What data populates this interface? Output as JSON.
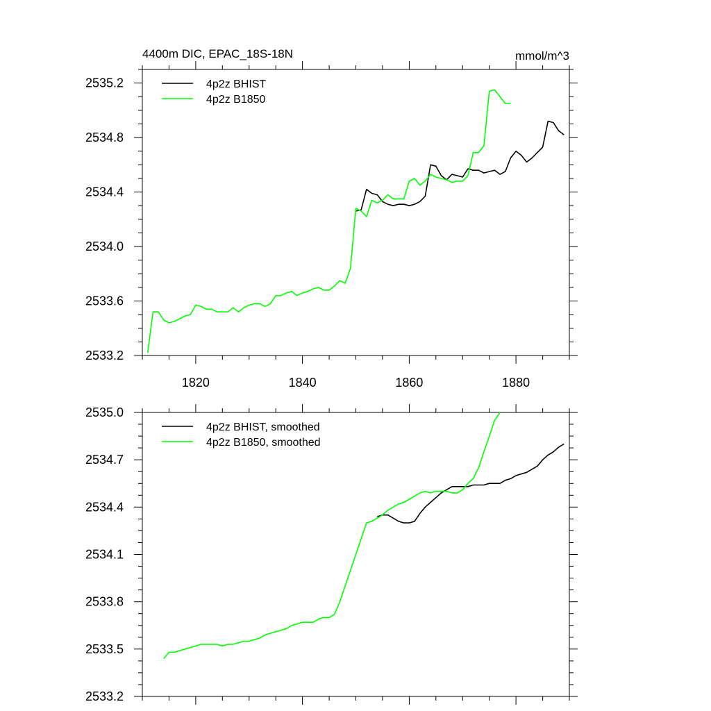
{
  "chart_data": [
    {
      "type": "line",
      "title": "4400m DIC, EPAC_18S-18N",
      "units": "mmol/m^3",
      "xlim": [
        1810,
        1890
      ],
      "ylim": [
        2533.2,
        2535.3
      ],
      "x_ticks": [
        1820,
        1840,
        1860,
        1880
      ],
      "x_tick_labels": [
        "1820",
        "1840",
        "1860",
        "1880"
      ],
      "y_ticks": [
        2533.2,
        2533.6,
        2534.0,
        2534.4,
        2534.8,
        2535.2
      ],
      "y_tick_labels": [
        "2533.2",
        "2533.6",
        "2534.0",
        "2534.4",
        "2534.8",
        "2535.2"
      ],
      "legend_position": "top-left",
      "series": [
        {
          "name": "4p2z BHIST",
          "color": "#000000",
          "x": [
            1850,
            1851,
            1852,
            1853,
            1854,
            1855,
            1856,
            1857,
            1858,
            1859,
            1860,
            1861,
            1862,
            1863,
            1864,
            1865,
            1866,
            1867,
            1868,
            1869,
            1870,
            1871,
            1872,
            1873,
            1874,
            1875,
            1876,
            1877,
            1878,
            1879,
            1880,
            1881,
            1882,
            1883,
            1884,
            1885,
            1886,
            1887,
            1888,
            1889
          ],
          "y": [
            2534.26,
            2534.27,
            2534.42,
            2534.39,
            2534.38,
            2534.33,
            2534.31,
            2534.3,
            2534.31,
            2534.31,
            2534.3,
            2534.31,
            2534.33,
            2534.37,
            2534.6,
            2534.59,
            2534.52,
            2534.49,
            2534.53,
            2534.52,
            2534.51,
            2534.57,
            2534.56,
            2534.56,
            2534.54,
            2534.55,
            2534.56,
            2534.53,
            2534.55,
            2534.65,
            2534.7,
            2534.67,
            2534.62,
            2534.65,
            2534.69,
            2534.73,
            2534.92,
            2534.91,
            2534.85,
            2534.82
          ]
        },
        {
          "name": "4p2z B1850",
          "color": "#00ff00",
          "x": [
            1811,
            1812,
            1813,
            1814,
            1815,
            1816,
            1817,
            1818,
            1819,
            1820,
            1821,
            1822,
            1823,
            1824,
            1825,
            1826,
            1827,
            1828,
            1829,
            1830,
            1831,
            1832,
            1833,
            1834,
            1835,
            1836,
            1837,
            1838,
            1839,
            1840,
            1841,
            1842,
            1843,
            1844,
            1845,
            1846,
            1847,
            1848,
            1849,
            1850,
            1851,
            1852,
            1853,
            1854,
            1855,
            1856,
            1857,
            1858,
            1859,
            1860,
            1861,
            1862,
            1863,
            1864,
            1865,
            1866,
            1867,
            1868,
            1869,
            1870,
            1871,
            1872,
            1873,
            1874,
            1875,
            1876,
            1877,
            1878,
            1879
          ],
          "y": [
            2533.22,
            2533.52,
            2533.52,
            2533.46,
            2533.44,
            2533.45,
            2533.47,
            2533.49,
            2533.5,
            2533.57,
            2533.56,
            2533.54,
            2533.54,
            2533.52,
            2533.52,
            2533.52,
            2533.55,
            2533.52,
            2533.55,
            2533.57,
            2533.58,
            2533.58,
            2533.56,
            2533.58,
            2533.64,
            2533.64,
            2533.66,
            2533.67,
            2533.64,
            2533.66,
            2533.67,
            2533.69,
            2533.7,
            2533.68,
            2533.68,
            2533.71,
            2533.75,
            2533.73,
            2533.84,
            2534.28,
            2534.26,
            2534.22,
            2534.34,
            2534.32,
            2534.34,
            2534.38,
            2534.35,
            2534.35,
            2534.35,
            2534.48,
            2534.5,
            2534.45,
            2534.48,
            2534.53,
            2534.51,
            2534.5,
            2534.49,
            2534.47,
            2534.48,
            2534.48,
            2534.52,
            2534.69,
            2534.69,
            2534.74,
            2535.14,
            2535.15,
            2535.1,
            2535.05,
            2535.05
          ]
        }
      ]
    },
    {
      "type": "line",
      "xlim": [
        1810,
        1890
      ],
      "ylim": [
        2533.2,
        2535.0
      ],
      "x_ticks": [
        1820,
        1840,
        1860,
        1880
      ],
      "y_ticks": [
        2533.2,
        2533.5,
        2533.8,
        2534.1,
        2534.4,
        2534.7,
        2535.0
      ],
      "y_tick_labels": [
        "2533.2",
        "2533.5",
        "2533.8",
        "2534.1",
        "2534.4",
        "2534.7",
        "2535.0"
      ],
      "legend_position": "top-left",
      "series": [
        {
          "name": "4p2z BHIST, smoothed",
          "color": "#000000",
          "x": [
            1854,
            1855,
            1856,
            1857,
            1858,
            1859,
            1860,
            1861,
            1862,
            1863,
            1864,
            1865,
            1866,
            1867,
            1868,
            1869,
            1870,
            1871,
            1872,
            1873,
            1874,
            1875,
            1876,
            1877,
            1878,
            1879,
            1880,
            1881,
            1882,
            1883,
            1884,
            1885,
            1886,
            1887,
            1888,
            1889
          ],
          "y": [
            2534.34,
            2534.35,
            2534.35,
            2534.33,
            2534.31,
            2534.3,
            2534.3,
            2534.31,
            2534.36,
            2534.4,
            2534.43,
            2534.46,
            2534.49,
            2534.51,
            2534.53,
            2534.53,
            2534.53,
            2534.53,
            2534.54,
            2534.54,
            2534.54,
            2534.55,
            2534.55,
            2534.55,
            2534.57,
            2534.58,
            2534.6,
            2534.61,
            2534.62,
            2534.64,
            2534.66,
            2534.7,
            2534.73,
            2534.75,
            2534.78,
            2534.8
          ]
        },
        {
          "name": "4p2z B1850, smoothed",
          "color": "#00ff00",
          "x": [
            1814,
            1815,
            1816,
            1817,
            1818,
            1819,
            1820,
            1821,
            1822,
            1823,
            1824,
            1825,
            1826,
            1827,
            1828,
            1829,
            1830,
            1831,
            1832,
            1833,
            1834,
            1835,
            1836,
            1837,
            1838,
            1839,
            1840,
            1841,
            1842,
            1843,
            1844,
            1845,
            1846,
            1847,
            1848,
            1849,
            1850,
            1851,
            1852,
            1853,
            1854,
            1855,
            1856,
            1857,
            1858,
            1859,
            1860,
            1861,
            1862,
            1863,
            1864,
            1865,
            1866,
            1867,
            1868,
            1869,
            1870,
            1871,
            1872,
            1873,
            1874,
            1875,
            1876,
            1877
          ],
          "y": [
            2533.44,
            2533.48,
            2533.48,
            2533.49,
            2533.5,
            2533.51,
            2533.52,
            2533.53,
            2533.53,
            2533.53,
            2533.53,
            2533.52,
            2533.53,
            2533.53,
            2533.54,
            2533.55,
            2533.55,
            2533.56,
            2533.57,
            2533.59,
            2533.6,
            2533.61,
            2533.62,
            2533.63,
            2533.65,
            2533.66,
            2533.67,
            2533.67,
            2533.67,
            2533.69,
            2533.7,
            2533.7,
            2533.72,
            2533.8,
            2533.9,
            2534.0,
            2534.1,
            2534.2,
            2534.3,
            2534.31,
            2534.33,
            2534.35,
            2534.38,
            2534.4,
            2534.42,
            2534.43,
            2534.45,
            2534.47,
            2534.49,
            2534.5,
            2534.49,
            2534.5,
            2534.5,
            2534.5,
            2534.49,
            2534.49,
            2534.51,
            2534.55,
            2534.58,
            2534.65,
            2534.75,
            2534.85,
            2534.95,
            2535.0
          ]
        }
      ]
    }
  ]
}
